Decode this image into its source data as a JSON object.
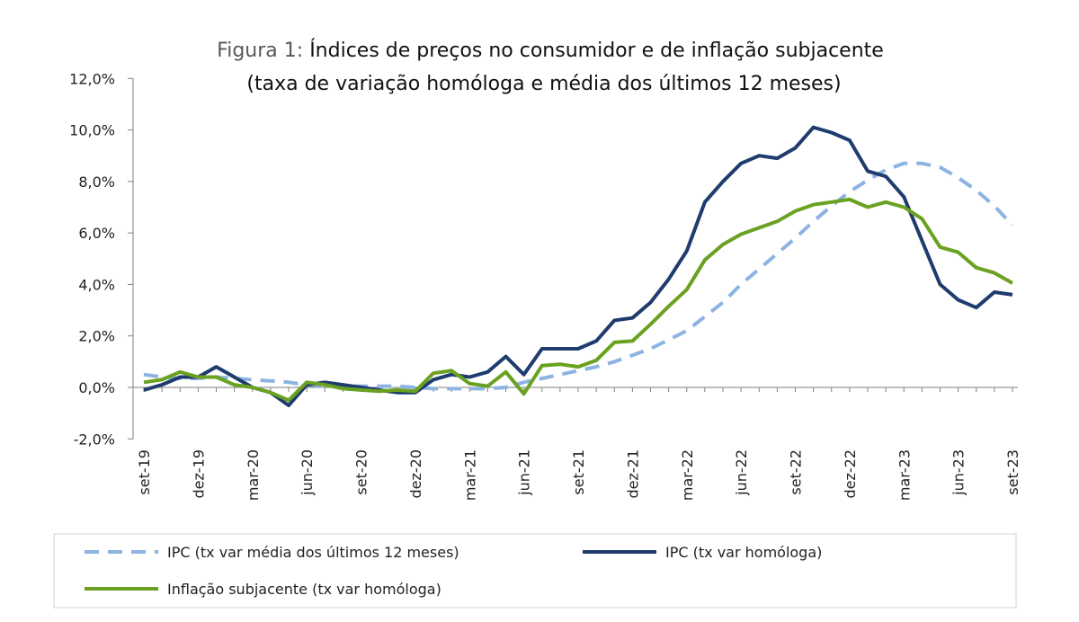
{
  "chart_data": {
    "type": "line",
    "title_prefix": "Figura 1:",
    "title": "Índices de preços no consumidor e de inflação subjacente",
    "subtitle": "(taxa de variação homóloga e média dos últimos 12 meses)",
    "xlabel": "",
    "ylabel": "",
    "ylim": [
      -2,
      12
    ],
    "y_ticks": [
      "-2,0%",
      "0,0%",
      "2,0%",
      "4,0%",
      "6,0%",
      "8,0%",
      "10,0%",
      "12,0%"
    ],
    "x_tick_labels": [
      "set-19",
      "dez-19",
      "mar-20",
      "jun-20",
      "set-20",
      "dez-20",
      "mar-21",
      "jun-21",
      "set-21",
      "dez-21",
      "mar-22",
      "jun-22",
      "set-22",
      "dez-22",
      "mar-23",
      "jun-23",
      "set-23"
    ],
    "grid": false,
    "legend_position": "bottom",
    "months": [
      "set-19",
      "out-19",
      "nov-19",
      "dez-19",
      "jan-20",
      "fev-20",
      "mar-20",
      "abr-20",
      "mai-20",
      "jun-20",
      "jul-20",
      "ago-20",
      "set-20",
      "out-20",
      "nov-20",
      "dez-20",
      "jan-21",
      "fev-21",
      "mar-21",
      "abr-21",
      "mai-21",
      "jun-21",
      "jul-21",
      "ago-21",
      "set-21",
      "out-21",
      "nov-21",
      "dez-21",
      "jan-22",
      "fev-22",
      "mar-22",
      "abr-22",
      "mai-22",
      "jun-22",
      "jul-22",
      "ago-22",
      "set-22",
      "out-22",
      "nov-22",
      "dez-22",
      "jan-23",
      "fev-23",
      "mar-23",
      "abr-23",
      "mai-23",
      "jun-23",
      "jul-23",
      "ago-23",
      "set-23"
    ],
    "series": [
      {
        "name": "IPC (tx var média dos últimos 12 meses)",
        "color": "#8db3e2",
        "style": "dashed",
        "values": [
          0.5,
          0.4,
          0.35,
          0.35,
          0.4,
          0.35,
          0.3,
          0.25,
          0.2,
          0.1,
          0.05,
          0.05,
          0.05,
          0.05,
          0.05,
          0.0,
          -0.05,
          -0.05,
          -0.05,
          -0.05,
          0.0,
          0.2,
          0.35,
          0.5,
          0.65,
          0.8,
          1.0,
          1.25,
          1.5,
          1.85,
          2.2,
          2.75,
          3.3,
          4.0,
          4.6,
          5.2,
          5.8,
          6.45,
          7.05,
          7.6,
          8.05,
          8.45,
          8.7,
          8.7,
          8.55,
          8.15,
          7.65,
          7.05,
          6.3
        ]
      },
      {
        "name": "IPC (tx var homóloga)",
        "color": "#1f3c6e",
        "style": "solid",
        "values": [
          -0.1,
          0.1,
          0.4,
          0.4,
          0.8,
          0.4,
          0.0,
          -0.2,
          -0.7,
          0.1,
          0.2,
          0.1,
          0.0,
          -0.1,
          -0.2,
          -0.2,
          0.3,
          0.5,
          0.4,
          0.6,
          1.2,
          0.5,
          1.5,
          1.5,
          1.5,
          1.8,
          2.6,
          2.7,
          3.3,
          4.2,
          5.3,
          7.2,
          8.0,
          8.7,
          9.0,
          8.9,
          9.3,
          10.1,
          9.9,
          9.6,
          8.4,
          8.2,
          7.4,
          5.7,
          4.0,
          3.4,
          3.1,
          3.7,
          3.6
        ]
      },
      {
        "name": "Inflação subjacente (tx var homóloga)",
        "color": "#6aa121",
        "style": "solid",
        "values": [
          0.2,
          0.3,
          0.6,
          0.4,
          0.4,
          0.1,
          0.0,
          -0.2,
          -0.5,
          0.2,
          0.1,
          -0.05,
          -0.1,
          -0.15,
          -0.1,
          -0.15,
          0.55,
          0.65,
          0.15,
          0.05,
          0.6,
          -0.25,
          0.85,
          0.9,
          0.8,
          1.05,
          1.75,
          1.8,
          2.45,
          3.15,
          3.8,
          4.95,
          5.55,
          5.95,
          6.2,
          6.45,
          6.85,
          7.1,
          7.2,
          7.3,
          7.0,
          7.2,
          7.0,
          6.55,
          5.45,
          5.25,
          4.65,
          4.45,
          4.05
        ]
      }
    ]
  }
}
